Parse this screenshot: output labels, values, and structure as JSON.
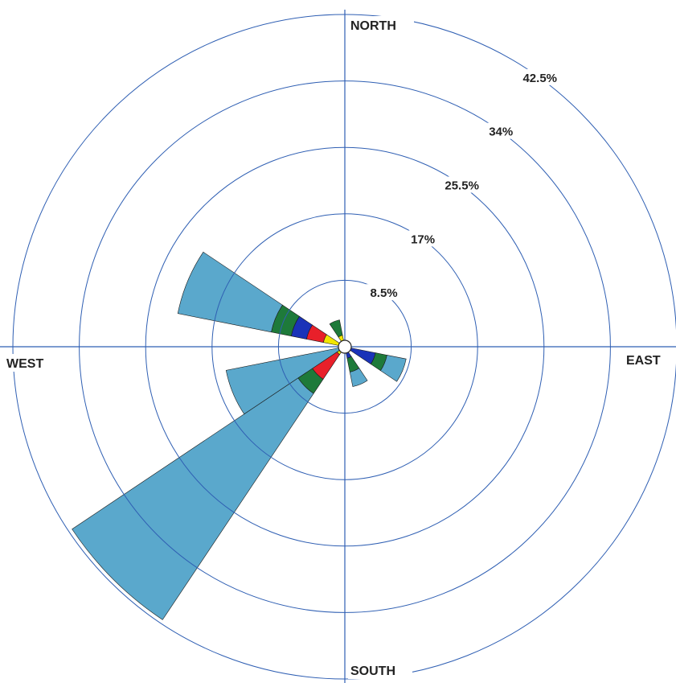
{
  "chart_data": {
    "type": "windrose",
    "directions": {
      "north": "NORTH",
      "south": "SOUTH",
      "east": "EAST",
      "west": "WEST"
    },
    "rings": [
      {
        "value": 8.5,
        "label": "8.5%"
      },
      {
        "value": 17,
        "label": "17%"
      },
      {
        "value": 25.5,
        "label": "25.5%"
      },
      {
        "value": 34,
        "label": "34%"
      },
      {
        "value": 42.5,
        "label": "42.5%"
      }
    ],
    "rlim": [
      0,
      42.5
    ],
    "sector_width_deg": 22.5,
    "colors": {
      "yellow": "#f2e600",
      "red": "#e8202a",
      "blue": "#1a33b8",
      "green": "#1e7a3a",
      "lightblue": "#5aa8cc"
    },
    "sectors": [
      {
        "direction_deg": 337.5,
        "segments": [
          {
            "color": "yellow",
            "cumulative": 1.5
          },
          {
            "color": "green",
            "cumulative": 3.5
          }
        ]
      },
      {
        "direction_deg": 112.5,
        "segments": [
          {
            "color": "blue",
            "cumulative": 4.0
          },
          {
            "color": "green",
            "cumulative": 5.5
          },
          {
            "color": "lightblue",
            "cumulative": 8.0
          }
        ]
      },
      {
        "direction_deg": 157.5,
        "segments": [
          {
            "color": "red",
            "cumulative": 0.4
          },
          {
            "color": "blue",
            "cumulative": 1.5
          },
          {
            "color": "green",
            "cumulative": 3.3
          },
          {
            "color": "lightblue",
            "cumulative": 5.2
          }
        ]
      },
      {
        "direction_deg": 225,
        "segments": [
          {
            "color": "yellow",
            "cumulative": 1.2
          },
          {
            "color": "red",
            "cumulative": 5.0
          },
          {
            "color": "green",
            "cumulative": 7.2
          },
          {
            "color": "lightblue",
            "cumulative": 42.0
          }
        ]
      },
      {
        "direction_deg": 247.5,
        "segments": [
          {
            "color": "lightblue",
            "cumulative": 15.5
          }
        ]
      },
      {
        "direction_deg": 292.5,
        "segments": [
          {
            "color": "yellow",
            "cumulative": 2.8
          },
          {
            "color": "red",
            "cumulative": 5.0
          },
          {
            "color": "blue",
            "cumulative": 7.0
          },
          {
            "color": "green",
            "cumulative": 9.6
          },
          {
            "color": "lightblue",
            "cumulative": 21.8
          }
        ]
      }
    ]
  }
}
